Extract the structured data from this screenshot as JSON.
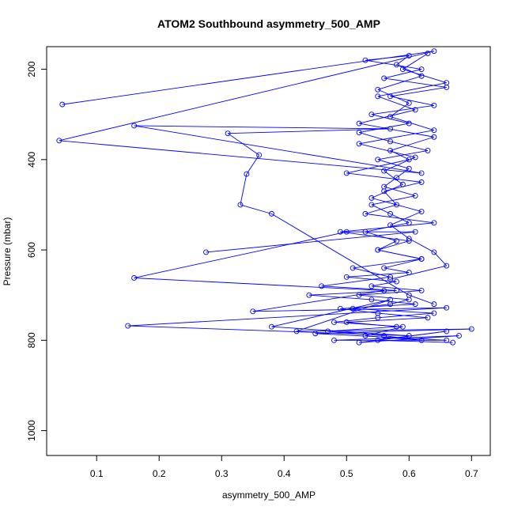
{
  "chart_data": {
    "type": "line",
    "title": "ATOM2 Southbound asymmetry_500_AMP",
    "xlabel": "asymmetry_500_AMP",
    "ylabel": "Pressure (mbar)",
    "xlim": [
      0.02,
      0.73
    ],
    "ylim": [
      1055,
      150
    ],
    "y_reversed": true,
    "grid": false,
    "legend": "none",
    "x_ticks": [
      0.1,
      0.2,
      0.3,
      0.4,
      0.5,
      0.6,
      0.7
    ],
    "x_tick_labels": [
      "0.1",
      "0.2",
      "0.3",
      "0.4",
      "0.5",
      "0.6",
      "0.7"
    ],
    "y_ticks": [
      200,
      400,
      600,
      800,
      1000
    ],
    "y_tick_labels": [
      "200",
      "400",
      "600",
      "800",
      "1000"
    ],
    "marker": "open-circle",
    "color": "#0000ff",
    "series": [
      {
        "x": [
          0.63,
          0.59,
          0.66,
          0.55,
          0.61,
          0.52,
          0.64,
          0.57,
          0.6,
          0.5,
          0.62,
          0.56,
          0.58,
          0.53,
          0.64,
          0.49,
          0.6,
          0.55,
          0.62,
          0.51,
          0.57,
          0.46,
          0.58,
          0.44,
          0.54,
          0.61,
          0.49,
          0.55,
          0.63,
          0.5,
          0.58,
          0.47,
          0.56,
          0.62,
          0.53,
          0.59,
          0.48,
          0.55,
          0.64,
          0.51,
          0.57,
          0.6,
          0.52,
          0.62,
          0.54,
          0.58,
          0.5,
          0.6,
          0.56,
          0.62,
          0.55,
          0.58,
          0.53,
          0.6,
          0.57,
          0.54,
          0.61,
          0.56,
          0.58,
          0.6,
          0.55,
          0.63,
          0.57,
          0.52,
          0.6,
          0.54,
          0.64,
          0.57,
          0.66,
          0.56,
          0.62,
          0.53,
          0.6,
          0.58,
          0.62,
          0.55,
          0.6,
          0.57,
          0.64,
          0.52,
          0.61,
          0.56,
          0.59,
          0.54,
          0.62,
          0.57,
          0.6,
          0.64,
          0.66,
          0.57
        ],
        "y": [
          165,
          200,
          230,
          260,
          290,
          320,
          350,
          380,
          400,
          430,
          450,
          470,
          500,
          520,
          540,
          560,
          580,
          600,
          620,
          640,
          660,
          680,
          690,
          700,
          710,
          720,
          730,
          740,
          750,
          760,
          770,
          780,
          790,
          800,
          790,
          770,
          760,
          750,
          740,
          730,
          720,
          710,
          700,
          690,
          680,
          670,
          660,
          650,
          640,
          620,
          600,
          580,
          560,
          540,
          520,
          500,
          480,
          460,
          440,
          420,
          400,
          380,
          360,
          340,
          320,
          300,
          280,
          260,
          240,
          220,
          200,
          180,
          170,
          190,
          215,
          245,
          275,
          305,
          335,
          365,
          395,
          425,
          455,
          485,
          515,
          545,
          575,
          605,
          635,
          665
        ]
      },
      {
        "x": [
          0.045,
          0.64,
          0.04,
          0.62,
          0.16,
          0.57,
          0.31,
          0.36,
          0.34,
          0.33,
          0.38,
          0.6,
          0.64
        ],
        "y": [
          278,
          160,
          358,
          430,
          325,
          332,
          342,
          390,
          432,
          500,
          520,
          700,
          720
        ]
      },
      {
        "x": [
          0.275,
          0.61,
          0.5,
          0.16,
          0.56,
          0.35,
          0.66,
          0.15,
          0.6,
          0.38,
          0.57,
          0.42,
          0.7,
          0.45,
          0.66,
          0.48,
          0.68,
          0.52,
          0.66,
          0.55,
          0.67
        ],
        "y": [
          605,
          560,
          560,
          662,
          690,
          736,
          728,
          768,
          790,
          770,
          710,
          780,
          775,
          785,
          800,
          800,
          790,
          805,
          780,
          800,
          805
        ]
      }
    ]
  }
}
